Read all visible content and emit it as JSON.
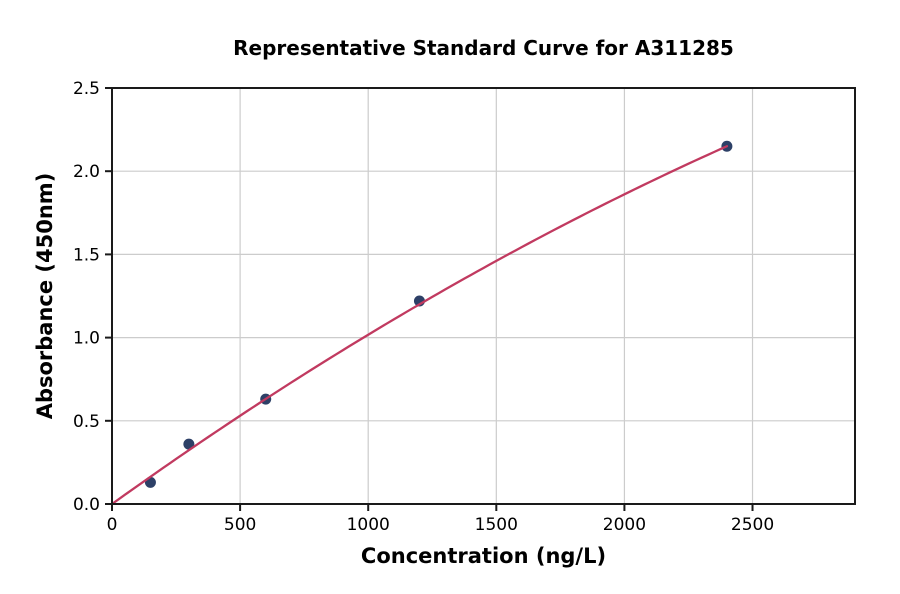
{
  "chart_data": {
    "type": "scatter",
    "title": "Representative Standard Curve for A311285",
    "xlabel": "Concentration (ng/L)",
    "ylabel": "Absorbance (450nm)",
    "xlim": [
      0,
      2900
    ],
    "ylim": [
      0,
      2.5
    ],
    "grid": true,
    "x_ticks": [
      {
        "value": 0,
        "label": "0"
      },
      {
        "value": 500,
        "label": "500"
      },
      {
        "value": 1000,
        "label": "1000"
      },
      {
        "value": 1500,
        "label": "1500"
      },
      {
        "value": 2000,
        "label": "2000"
      },
      {
        "value": 2500,
        "label": "2500"
      }
    ],
    "y_ticks": [
      {
        "value": 0.0,
        "label": "0.0"
      },
      {
        "value": 0.5,
        "label": "0.5"
      },
      {
        "value": 1.0,
        "label": "1.0"
      },
      {
        "value": 1.5,
        "label": "1.5"
      },
      {
        "value": 2.0,
        "label": "2.0"
      },
      {
        "value": 2.5,
        "label": "2.5"
      }
    ],
    "series": [
      {
        "name": "standard-points",
        "type": "scatter",
        "x": [
          150,
          300,
          600,
          1200,
          2400
        ],
        "y": [
          0.13,
          0.36,
          0.63,
          1.22,
          2.15
        ],
        "color": "#2d4067",
        "marker_radius": 5.5
      },
      {
        "name": "fitted-curve",
        "type": "line",
        "curve": {
          "form": "quadratic",
          "a": 0.00110417,
          "b": -8.6806e-08,
          "x_start": 0,
          "x_end": 2400
        },
        "color": "#c13a60",
        "line_width": 2.3
      }
    ],
    "colors": {
      "grid": "#cccccc",
      "axis": "#1a1a1a",
      "background": "#ffffff"
    }
  }
}
